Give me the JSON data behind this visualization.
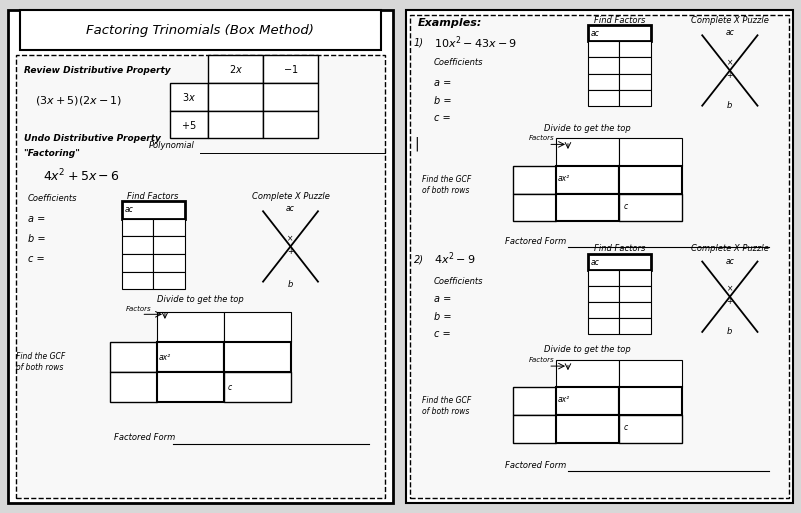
{
  "title": "Factoring Trinomials (Box Method)",
  "bg": "#d8d8d8",
  "white": "#ffffff",
  "light_gray": "#f0f0f0",
  "left": {
    "review_title": "Review Distributive Property",
    "review_expr": "$(3x + 5)(2x - 1)$",
    "col_headers": [
      "$2x$",
      "$-1$"
    ],
    "row_headers": [
      "$3x$",
      "$+5$"
    ],
    "undo_line1": "Undo Distributive Property",
    "undo_line2": "\"Factoring\"",
    "poly_label": "Polynomial",
    "main_expr": "$4x^2 + 5x - 6$",
    "coeff_label": "Coefficients",
    "a_label": "a =",
    "b_label": "b =",
    "c_label": "c =",
    "find_factors": "Find Factors",
    "complete_x": "Complete X Puzzle",
    "ac_label": "ac",
    "b_bottom": "b",
    "divide_label": "Divide to get the top",
    "factors_label": "Factors",
    "ax2_label": "ax²",
    "c_small": "c",
    "gcf_label": "Find the GCF\nof both rows",
    "factored_form": "Factored Form"
  },
  "right": {
    "examples_title": "Examples:",
    "ex1_num": "1)",
    "ex1_expr": "$10x^2 - 43x - 9$",
    "ex2_num": "2)",
    "ex2_expr": "$4x^2 - 9$",
    "find_factors": "Find Factors",
    "complete_x": "Complete X Puzzle",
    "ac_label": "ac",
    "coeff_label": "Coefficients",
    "a_label": "a =",
    "b_label": "b =",
    "c_label": "c =",
    "divide_label": "Divide to get the top",
    "factors_label": "Factors",
    "ax2_label": "ax²",
    "c_small": "c",
    "gcf_label": "Find the GCF\nof both rows",
    "factored_form": "Factored Form",
    "b_bottom": "b"
  }
}
